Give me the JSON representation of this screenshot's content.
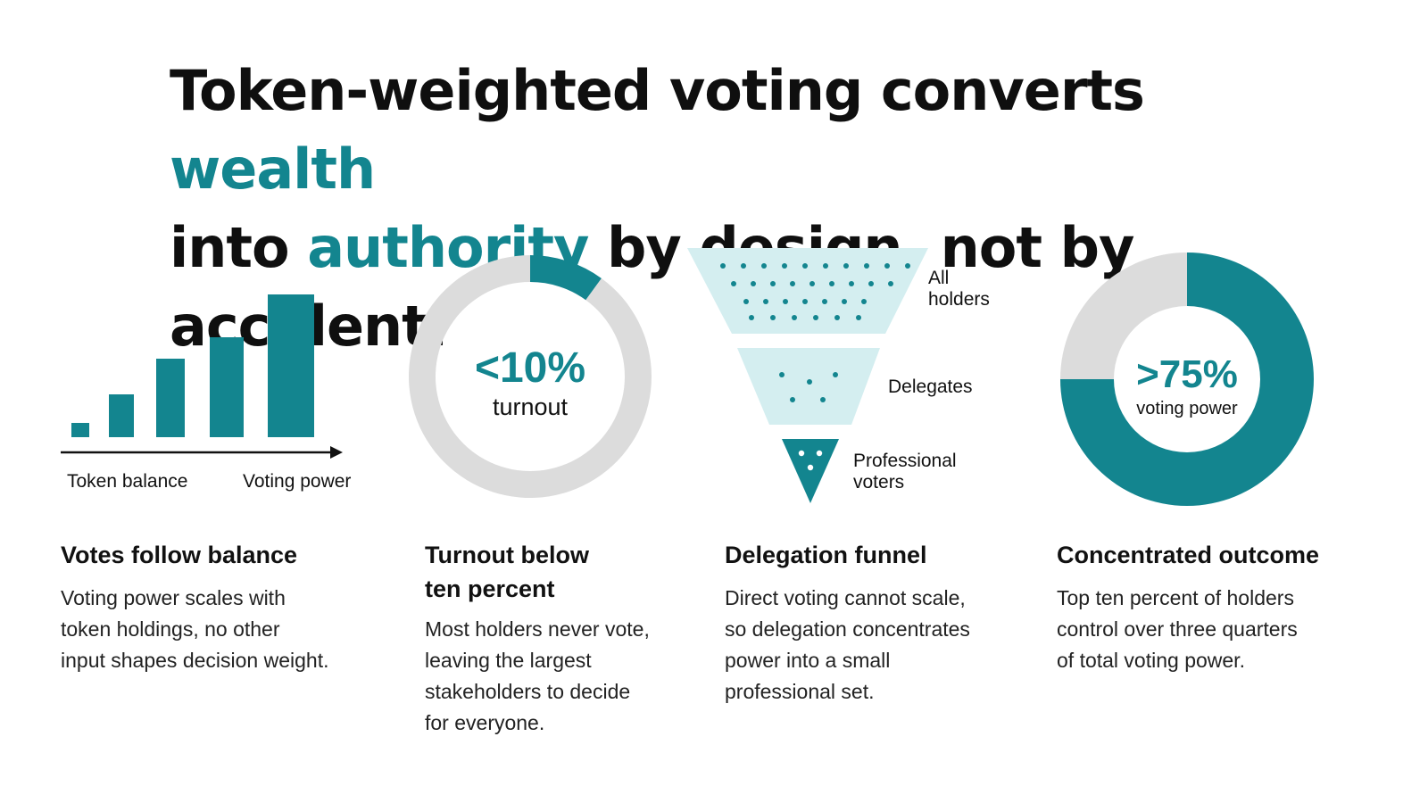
{
  "headline": {
    "part1": "Token-weighted voting converts ",
    "accent1": "wealth",
    "part2": "into ",
    "accent2": "authority",
    "part3": " by design, not by accident."
  },
  "colors": {
    "accent": "#13858f",
    "funnel_light": "#d4eef0",
    "ring_gray": "#dcdcdc",
    "text": "#111111"
  },
  "panel1": {
    "chart_data": {
      "type": "bar",
      "values": [
        1,
        3,
        5.5,
        7,
        10
      ],
      "xlabel": "Token balance",
      "ylabel": "Voting power"
    },
    "label_left": "Token balance",
    "label_right": "Voting power",
    "title": "Votes follow balance",
    "body": [
      "Voting power scales with",
      "token holdings, no other",
      "input shapes decision weight."
    ]
  },
  "panel2": {
    "chart_data": {
      "type": "pie",
      "slices": [
        {
          "label": "turnout",
          "value": 10
        },
        {
          "label": "",
          "value": 90
        }
      ]
    },
    "big": "<10%",
    "small": "turnout",
    "title": [
      "Turnout below",
      "ten percent"
    ],
    "body": [
      "Most holders never vote,",
      "leaving the largest",
      "stakeholders to decide",
      "for everyone."
    ]
  },
  "panel3": {
    "stages": [
      {
        "label": [
          "All",
          "holders"
        ]
      },
      {
        "label": [
          "Delegates"
        ]
      },
      {
        "label": [
          "Professional",
          "voters"
        ]
      }
    ],
    "title": "Delegation funnel",
    "body": [
      "Direct voting cannot scale,",
      "so delegation concentrates",
      "power into a small",
      "professional set."
    ]
  },
  "panel4": {
    "chart_data": {
      "type": "pie",
      "slices": [
        {
          "label": "voting power",
          "value": 75
        },
        {
          "label": "",
          "value": 25
        }
      ]
    },
    "big": ">75%",
    "small": "voting power",
    "title": "Concentrated outcome",
    "body": [
      "Top ten percent of holders",
      "control over three quarters",
      "of total voting power."
    ]
  }
}
